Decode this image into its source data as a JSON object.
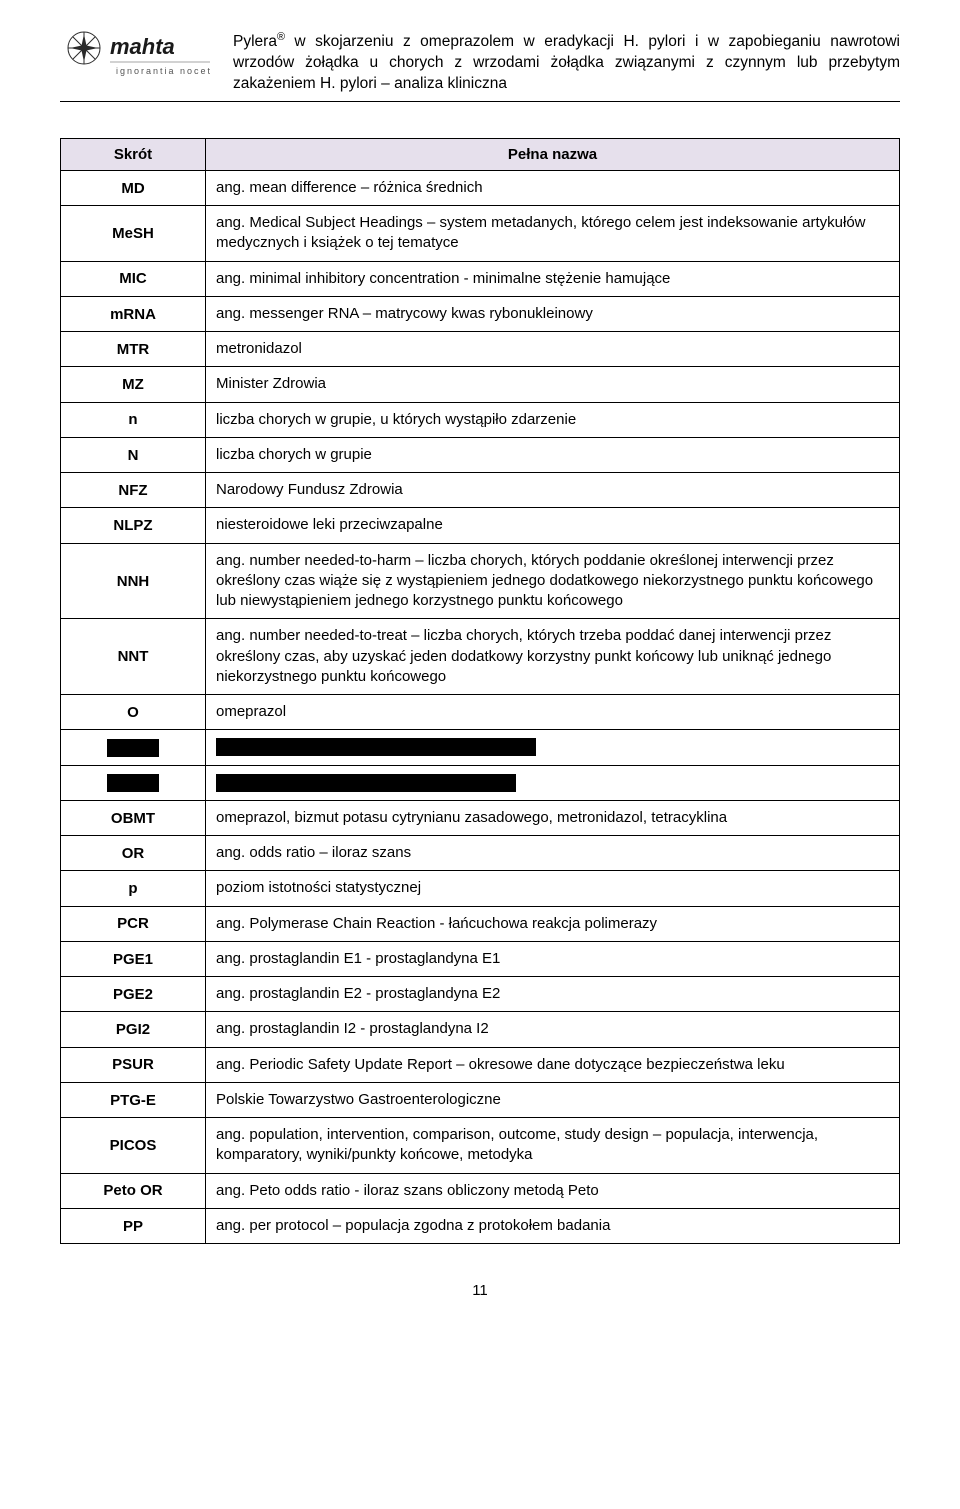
{
  "logo": {
    "brand": "mahta",
    "tagline": "ignorantia nocet"
  },
  "header": {
    "text_html": "Pylera<sup>®</sup> w skojarzeniu z omeprazolem w eradykacji H. pylori i w zapobieganiu nawrotowi wrzodów żołądka u chorych z wrzodami żołądka związanymi z czynnym lub przebytym zakażeniem H. pylori – analiza kliniczna"
  },
  "table": {
    "headers": {
      "abbr": "Skrót",
      "name": "Pełna nazwa"
    },
    "rows": [
      {
        "abbr": "MD",
        "desc": "ang. mean difference – różnica średnich"
      },
      {
        "abbr": "MeSH",
        "desc": "ang. Medical Subject Headings – system metadanych, którego celem jest indeksowanie artykułów medycznych i książek o tej tematyce",
        "justify": true
      },
      {
        "abbr": "MIC",
        "desc": "ang. minimal inhibitory concentration - minimalne stężenie hamujące"
      },
      {
        "abbr": "mRNA",
        "desc": "ang. messenger RNA – matrycowy kwas rybonukleinowy"
      },
      {
        "abbr": "MTR",
        "desc": "metronidazol"
      },
      {
        "abbr": "MZ",
        "desc": "Minister Zdrowia"
      },
      {
        "abbr": "n",
        "desc": "liczba chorych w grupie, u których wystąpiło zdarzenie"
      },
      {
        "abbr": "N",
        "desc": "liczba chorych w grupie"
      },
      {
        "abbr": "NFZ",
        "desc": "Narodowy Fundusz Zdrowia"
      },
      {
        "abbr": "NLPZ",
        "desc": "niesteroidowe leki przeciwzapalne"
      },
      {
        "abbr": "NNH",
        "desc": "ang. number needed-to-harm – liczba chorych, których poddanie określonej interwencji przez określony czas wiąże się z wystąpieniem jednego dodatkowego niekorzystnego punktu końcowego lub niewystąpieniem jednego korzystnego punktu końcowego",
        "justify": true
      },
      {
        "abbr": "NNT",
        "desc": "ang. number needed-to-treat – liczba chorych, których trzeba poddać danej interwencji przez określony czas, aby uzyskać jeden dodatkowy korzystny punkt końcowy lub uniknąć jednego niekorzystnego punktu końcowego",
        "justify": true
      },
      {
        "abbr": "O",
        "desc": "omeprazol"
      },
      {
        "redacted": true,
        "abbr_redact": "redact-short",
        "desc_redact": "redact-long1"
      },
      {
        "redacted": true,
        "abbr_redact": "redact-short",
        "desc_redact": "redact-long2"
      },
      {
        "abbr": "OBMT",
        "desc": "omeprazol, bizmut potasu cytrynianu zasadowego, metronidazol, tetracyklina"
      },
      {
        "abbr": "OR",
        "desc": "ang. odds ratio – iloraz szans"
      },
      {
        "abbr": "p",
        "desc": "poziom istotności statystycznej"
      },
      {
        "abbr": "PCR",
        "desc": "ang. Polymerase Chain Reaction - łańcuchowa reakcja polimerazy"
      },
      {
        "abbr": "PGE1",
        "desc": "ang. prostaglandin E1 - prostaglandyna E1"
      },
      {
        "abbr": "PGE2",
        "desc": "ang. prostaglandin E2 - prostaglandyna E2"
      },
      {
        "abbr": "PGI2",
        "desc": "ang. prostaglandin I2 - prostaglandyna I2"
      },
      {
        "abbr": "PSUR",
        "desc": "ang. Periodic Safety Update Report – okresowe dane dotyczące bezpieczeństwa leku"
      },
      {
        "abbr": "PTG-E",
        "desc": "Polskie Towarzystwo Gastroenterologiczne"
      },
      {
        "abbr": "PICOS",
        "desc": "ang. population, intervention, comparison, outcome, study design – populacja, interwencja, komparatory, wyniki/punkty końcowe, metodyka",
        "justify": true
      },
      {
        "abbr": "Peto OR",
        "desc": "ang. Peto odds ratio - iloraz szans obliczony metodą Peto"
      },
      {
        "abbr": "PP",
        "desc": "ang. per protocol – populacja zgodna z protokołem badania"
      }
    ]
  },
  "page_number": "11"
}
